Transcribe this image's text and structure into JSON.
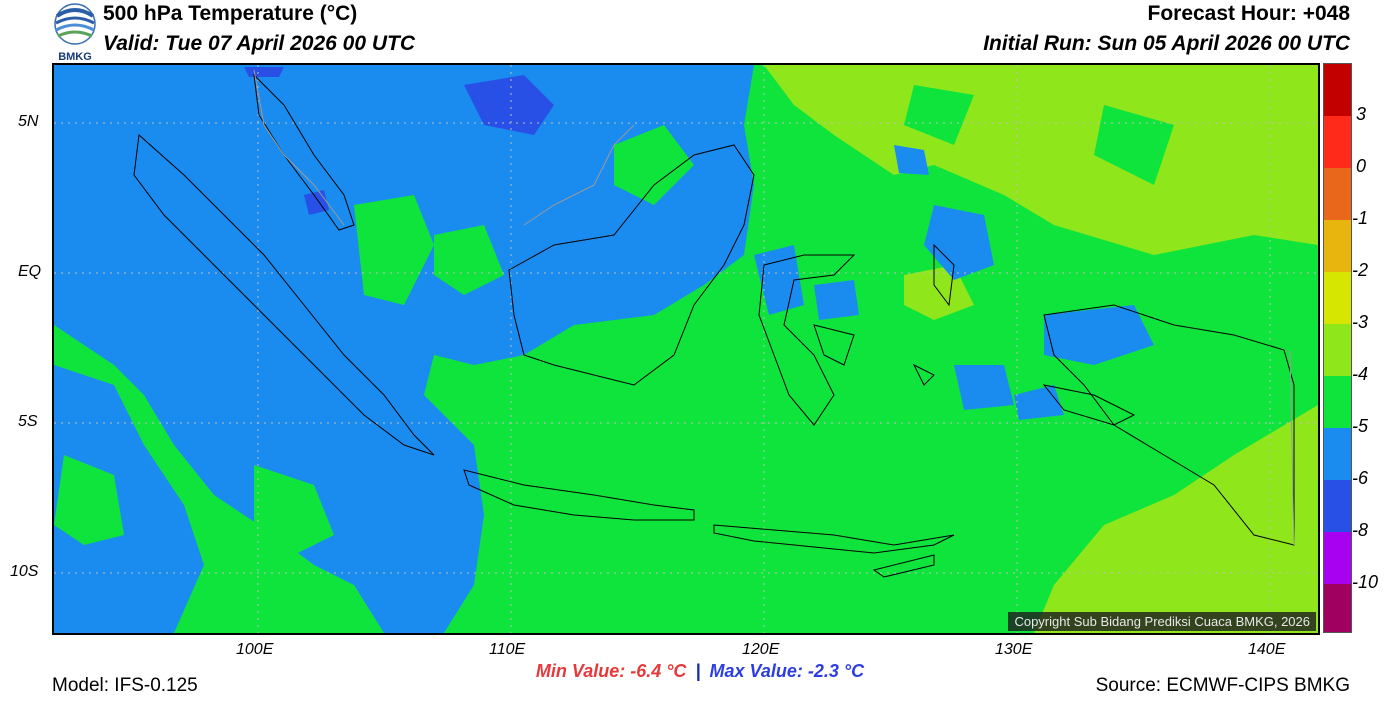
{
  "header": {
    "logo_text": "BMKG",
    "title": "500 hPa Temperature (°C)",
    "valid": "Valid: Tue 07 April 2026 00 UTC",
    "forecast_hour": "Forecast Hour: +048",
    "initial_run": "Initial Run: Sun 05 April 2026 00 UTC"
  },
  "map": {
    "x_ticks": [
      "100E",
      "110E",
      "120E",
      "130E",
      "140E"
    ],
    "y_ticks": [
      "5N",
      "EQ",
      "5S",
      "10S"
    ],
    "copyright": "Copyright Sub Bidang Prediksi Cuaca BMKG, 2026"
  },
  "colorbar": {
    "labels": [
      "3",
      "0",
      "-1",
      "-2",
      "-3",
      "-4",
      "-5",
      "-6",
      "-8",
      "-10"
    ],
    "colors": [
      "#c20000",
      "#ff0000",
      "#ff2a1a",
      "#e8671a",
      "#e8b40e",
      "#d6e600",
      "#8fe61a",
      "#0fe43c",
      "#1a8cf0",
      "#2850e6",
      "#a800f0",
      "#a00060"
    ]
  },
  "stats": {
    "min": "Min Value: -6.4 °C",
    "separator": "|",
    "max": "Max Value: -2.3 °C"
  },
  "footer": {
    "model": "Model: IFS-0.125",
    "source": "Source: ECMWF-CIPS BMKG"
  }
}
